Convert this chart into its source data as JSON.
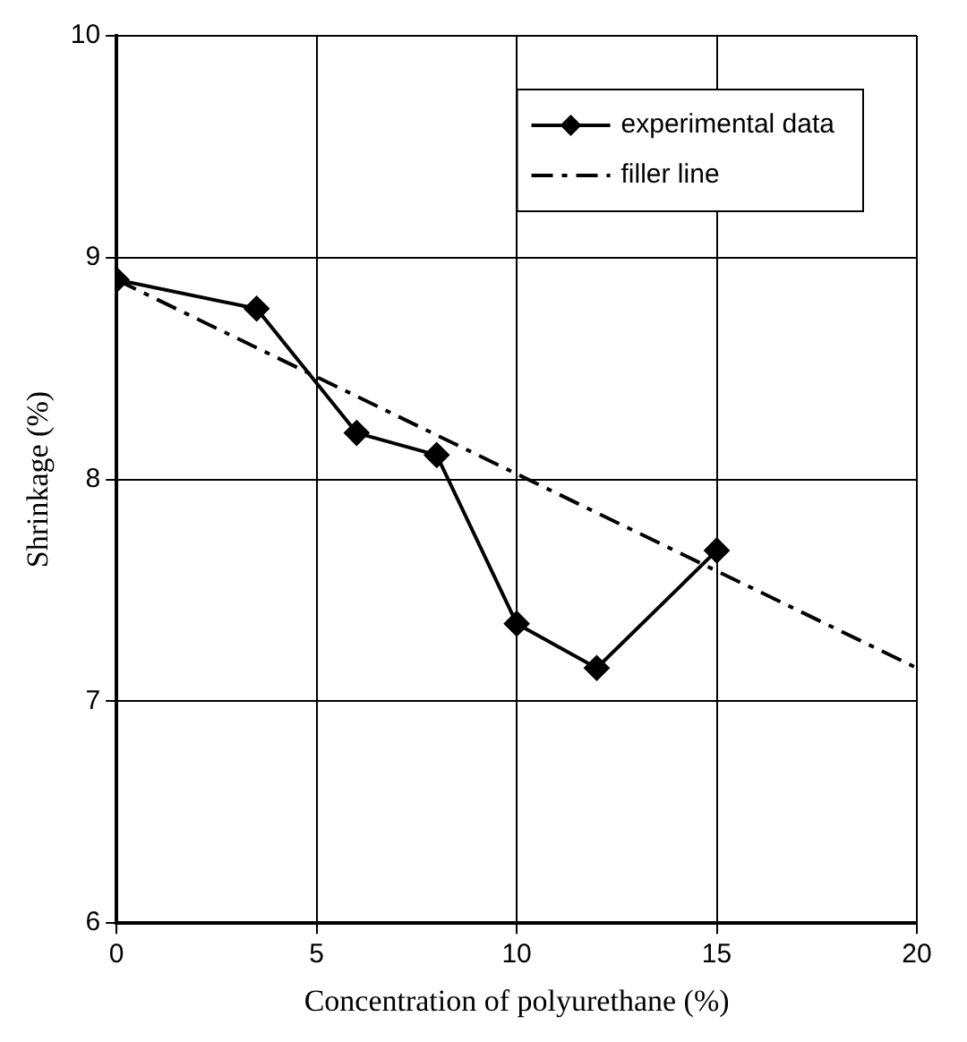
{
  "chart_data": {
    "type": "line",
    "xlabel": "Concentration of polyurethane (%)",
    "ylabel": "Shrinkage (%)",
    "xlim": [
      0,
      20
    ],
    "xticks": [
      0,
      5,
      10,
      15,
      20
    ],
    "ylim": [
      6,
      10
    ],
    "yticks": [
      6,
      7,
      8,
      9,
      10
    ],
    "grid": true,
    "legend": "top right",
    "series": [
      {
        "name": "experimental data",
        "color": "#000000",
        "x": [
          0,
          3.5,
          6,
          8,
          10,
          12,
          15
        ],
        "values": [
          8.9,
          8.77,
          8.21,
          8.11,
          7.35,
          7.15,
          7.68
        ],
        "marker": "diamond",
        "line_style": "solid"
      },
      {
        "name": "filler line",
        "color": "#000000",
        "x": [
          0,
          20
        ],
        "values": [
          8.9,
          7.15
        ],
        "marker": "none",
        "line_style": "dashed"
      }
    ]
  }
}
